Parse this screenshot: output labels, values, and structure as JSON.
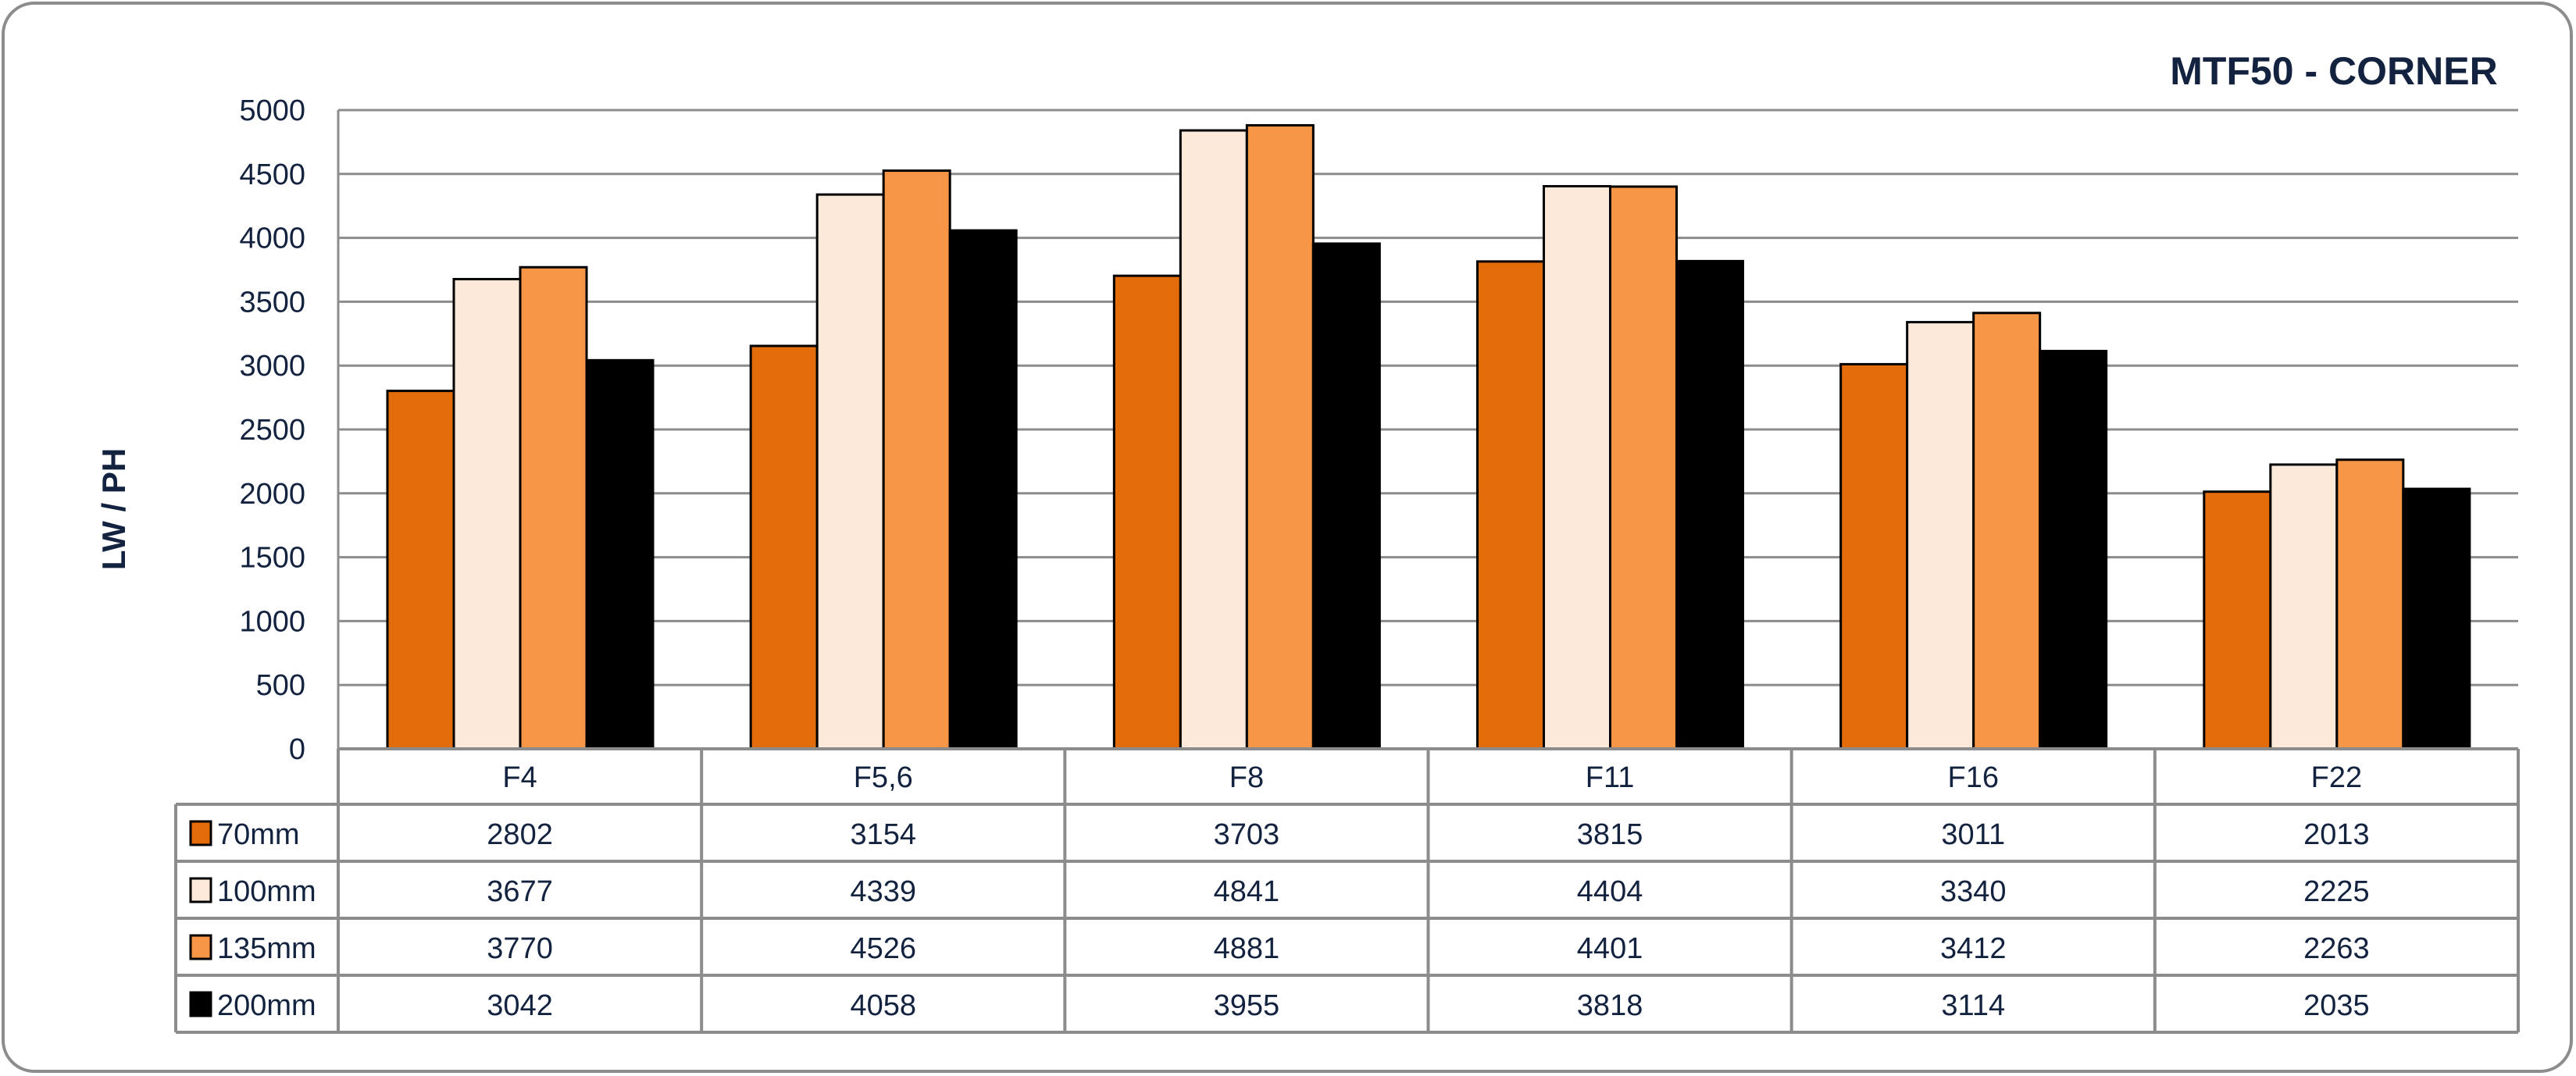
{
  "chart_data": {
    "type": "bar",
    "title": "MTF50 - CORNER",
    "xlabel": "",
    "ylabel": "LW / PH",
    "ylim": [
      0,
      5000
    ],
    "yticks": [
      0,
      500,
      1000,
      1500,
      2000,
      2500,
      3000,
      3500,
      4000,
      4500,
      5000
    ],
    "grid": true,
    "legend_placement": "data-table-left",
    "categories": [
      "F4",
      "F5,6",
      "F8",
      "F11",
      "F16",
      "F22"
    ],
    "series": [
      {
        "name": "70mm",
        "color": "#e36c0a",
        "values": [
          2802,
          3154,
          3703,
          3815,
          3011,
          2013
        ]
      },
      {
        "name": "100mm",
        "color": "#fde9d9",
        "values": [
          3677,
          4339,
          4841,
          4404,
          3340,
          2225
        ]
      },
      {
        "name": "135mm",
        "color": "#f79646",
        "values": [
          3770,
          4526,
          4881,
          4401,
          3412,
          2263
        ]
      },
      {
        "name": "200mm",
        "color": "#000000",
        "values": [
          3042,
          4058,
          3955,
          3818,
          3114,
          2035
        ]
      }
    ]
  }
}
